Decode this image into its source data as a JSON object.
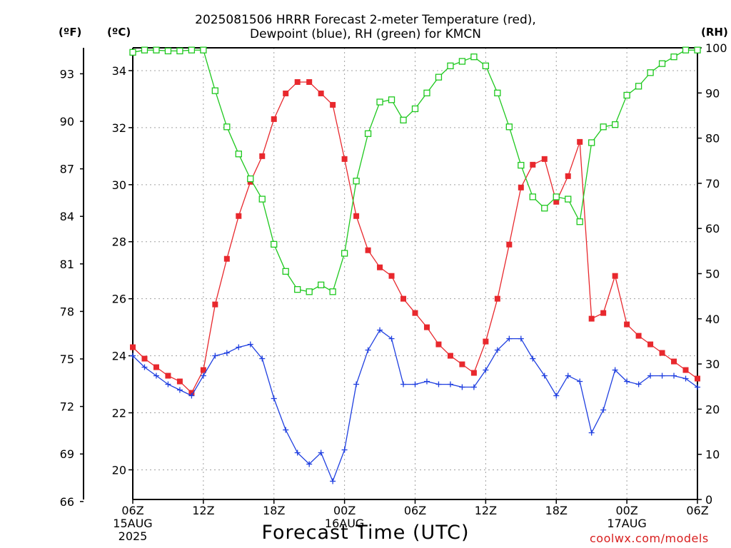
{
  "title_line1": "2025081506 HRRR Forecast 2-meter Temperature (red),",
  "title_line2": "Dewpoint (blue), RH (green) for KMCN",
  "unit_f": "(ºF)",
  "unit_c": "(ºC)",
  "unit_rh": "(RH)",
  "xlabel": "Forecast Time (UTC)",
  "credit": "coolwx.com/models",
  "colors": {
    "temperature": "#e8282d",
    "dewpoint": "#1f3fe0",
    "rh": "#1ec81e",
    "grid": "#a0a0a0"
  },
  "chart_data": {
    "type": "line",
    "title": "2025081506 HRRR Forecast 2-meter Temperature (red), Dewpoint (blue), RH (green) for KMCN",
    "xlabel": "Forecast Time (UTC)",
    "x_unit": "forecast hour",
    "xlim": [
      0,
      48
    ],
    "x_ticks": [
      {
        "hour": 0,
        "label": [
          "06Z",
          "15AUG",
          "2025"
        ]
      },
      {
        "hour": 6,
        "label": [
          "12Z"
        ]
      },
      {
        "hour": 12,
        "label": [
          "18Z"
        ]
      },
      {
        "hour": 18,
        "label": [
          "00Z",
          "16AUG"
        ]
      },
      {
        "hour": 24,
        "label": [
          "06Z"
        ]
      },
      {
        "hour": 30,
        "label": [
          "12Z"
        ]
      },
      {
        "hour": 36,
        "label": [
          "18Z"
        ]
      },
      {
        "hour": 42,
        "label": [
          "00Z",
          "17AUG"
        ]
      },
      {
        "hour": 48,
        "label": [
          "06Z"
        ]
      }
    ],
    "y_left_c": {
      "label": "(ºC)",
      "ylim": [
        18.96,
        34.8
      ],
      "ticks": [
        20,
        22,
        24,
        26,
        28,
        30,
        32,
        34
      ]
    },
    "y_left_f": {
      "label": "(ºF)",
      "ticks": [
        66,
        69,
        72,
        75,
        78,
        81,
        84,
        87,
        90,
        93
      ]
    },
    "y_right": {
      "label": "(RH)",
      "ylim": [
        0,
        100
      ],
      "ticks": [
        0,
        10,
        20,
        30,
        40,
        50,
        60,
        70,
        80,
        90,
        100
      ]
    },
    "grid": true,
    "series": [
      {
        "name": "Temperature",
        "axis": "celsius",
        "marker": "filled-square",
        "values": [
          24.3,
          23.9,
          23.6,
          23.3,
          23.1,
          22.7,
          23.5,
          25.8,
          27.4,
          28.9,
          30.1,
          31.0,
          32.3,
          33.2,
          33.6,
          33.6,
          33.2,
          32.8,
          30.9,
          28.9,
          27.7,
          27.1,
          26.8,
          26.0,
          25.5,
          25.0,
          24.4,
          24.0,
          23.7,
          23.4,
          24.5,
          26.0,
          27.9,
          29.9,
          30.7,
          30.9,
          29.4,
          30.3,
          31.5,
          25.3,
          25.5,
          26.8,
          25.1,
          24.7,
          24.4,
          24.1,
          23.8,
          23.5,
          23.2
        ]
      },
      {
        "name": "Dewpoint",
        "axis": "celsius",
        "marker": "plus",
        "values": [
          24.0,
          23.6,
          23.3,
          23.0,
          22.8,
          22.6,
          23.3,
          24.0,
          24.1,
          24.3,
          24.4,
          23.9,
          22.5,
          21.4,
          20.6,
          20.2,
          20.6,
          19.6,
          20.7,
          23.0,
          24.2,
          24.9,
          24.6,
          23.0,
          23.0,
          23.1,
          23.0,
          23.0,
          22.9,
          22.9,
          23.5,
          24.2,
          24.6,
          24.6,
          23.9,
          23.3,
          22.6,
          23.3,
          23.1,
          21.3,
          22.1,
          23.5,
          23.1,
          23.0,
          23.3,
          23.3,
          23.3,
          23.2,
          22.9
        ]
      },
      {
        "name": "RH",
        "axis": "rh",
        "marker": "open-square",
        "values": [
          99,
          99.5,
          99.5,
          99.3,
          99.3,
          99.5,
          99.5,
          90.5,
          82.5,
          76.5,
          71.0,
          66.5,
          56.5,
          50.5,
          46.5,
          46.0,
          47.5,
          46.0,
          54.5,
          70.5,
          81.0,
          88.0,
          88.5,
          84.0,
          86.5,
          90.0,
          93.5,
          96.0,
          97.0,
          98.0,
          96.0,
          90.0,
          82.5,
          74.0,
          67.0,
          64.5,
          67.0,
          66.5,
          61.5,
          79.0,
          82.5,
          83.0,
          89.5,
          91.5,
          94.5,
          96.5,
          98.0,
          99.5,
          99.5
        ]
      }
    ]
  }
}
